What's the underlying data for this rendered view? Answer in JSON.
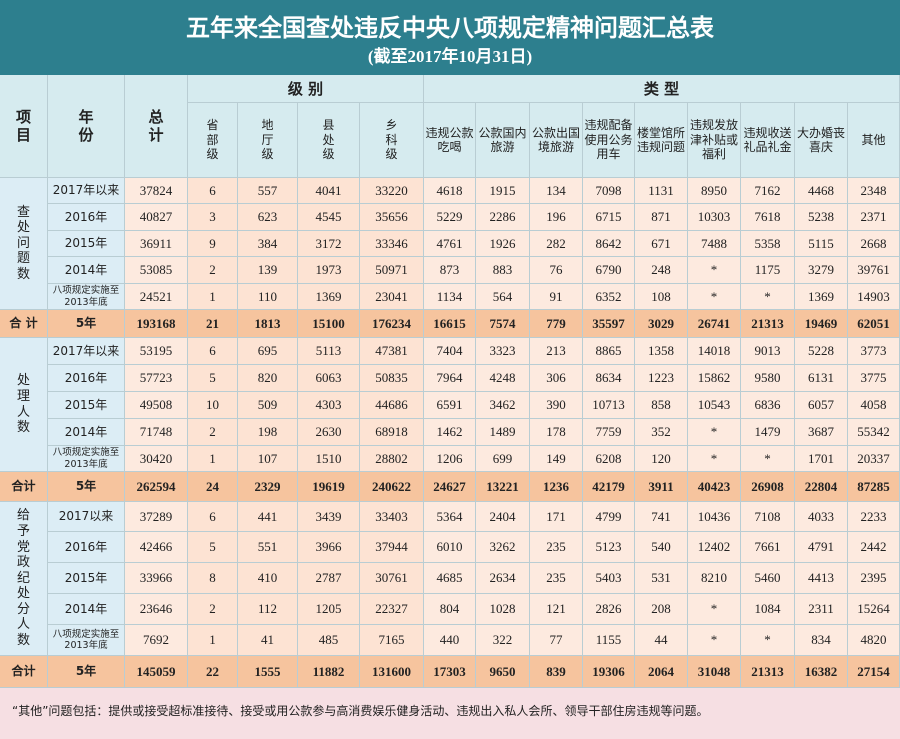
{
  "header": {
    "title": "五年来全国查处违反中央八项规定精神问题汇总表",
    "subtitle": "(截至2017年10月31日)"
  },
  "table": {
    "columns": {
      "item": "项目",
      "year": "年份",
      "total": "总计",
      "level": "级 别",
      "type": "类 型",
      "levels": [
        "省部级",
        "地厅级",
        "县处级",
        "乡科级"
      ],
      "types": [
        "违规公款吃喝",
        "公款国内旅游",
        "公款出国境旅游",
        "违规配备使用公务用车",
        "楼堂馆所违规问题",
        "违规发放津补贴或福利",
        "违规收送礼品礼金",
        "大办婚丧喜庆",
        "其他"
      ]
    },
    "sections": [
      {
        "label": "查处问题数",
        "rows": [
          {
            "year": "2017年以来",
            "values": [
              37824,
              6,
              557,
              4041,
              33220,
              4618,
              1915,
              134,
              7098,
              1131,
              8950,
              7162,
              4468,
              2348
            ]
          },
          {
            "year": "2016年",
            "values": [
              40827,
              3,
              623,
              4545,
              35656,
              5229,
              2286,
              196,
              6715,
              871,
              10303,
              7618,
              5238,
              2371
            ]
          },
          {
            "year": "2015年",
            "values": [
              36911,
              9,
              384,
              3172,
              33346,
              4761,
              1926,
              282,
              8642,
              671,
              7488,
              5358,
              5115,
              2668
            ]
          },
          {
            "year": "2014年",
            "values": [
              53085,
              2,
              139,
              1973,
              50971,
              873,
              883,
              76,
              6790,
              248,
              "*",
              1175,
              3279,
              39761
            ]
          },
          {
            "year": "八项规定实施至2013年底",
            "values": [
              24521,
              1,
              110,
              1369,
              23041,
              1134,
              564,
              91,
              6352,
              108,
              "*",
              "*",
              1369,
              14903
            ]
          }
        ],
        "total": {
          "label": "合 计",
          "year": "5年",
          "values": [
            193168,
            21,
            1813,
            15100,
            176234,
            16615,
            7574,
            779,
            35597,
            3029,
            26741,
            21313,
            19469,
            62051
          ]
        }
      },
      {
        "label": "处理人数",
        "rows": [
          {
            "year": "2017年以来",
            "values": [
              53195,
              6,
              695,
              5113,
              47381,
              7404,
              3323,
              213,
              8865,
              1358,
              14018,
              9013,
              5228,
              3773
            ]
          },
          {
            "year": "2016年",
            "values": [
              57723,
              5,
              820,
              6063,
              50835,
              7964,
              4248,
              306,
              8634,
              1223,
              15862,
              9580,
              6131,
              3775
            ]
          },
          {
            "year": "2015年",
            "values": [
              49508,
              10,
              509,
              4303,
              44686,
              6591,
              3462,
              390,
              10713,
              858,
              10543,
              6836,
              6057,
              4058
            ]
          },
          {
            "year": "2014年",
            "values": [
              71748,
              2,
              198,
              2630,
              68918,
              1462,
              1489,
              178,
              7759,
              352,
              "*",
              1479,
              3687,
              55342
            ]
          },
          {
            "year": "八项规定实施至2013年底",
            "values": [
              30420,
              1,
              107,
              1510,
              28802,
              1206,
              699,
              149,
              6208,
              120,
              "*",
              "*",
              1701,
              20337
            ]
          }
        ],
        "total": {
          "label": "合计",
          "year": "5年",
          "values": [
            262594,
            24,
            2329,
            19619,
            240622,
            24627,
            13221,
            1236,
            42179,
            3911,
            40423,
            26908,
            22804,
            87285
          ]
        }
      },
      {
        "label": "给予党政纪处分人数",
        "rows": [
          {
            "year": "2017以来",
            "values": [
              37289,
              6,
              441,
              3439,
              33403,
              5364,
              2404,
              171,
              4799,
              741,
              10436,
              7108,
              4033,
              2233
            ]
          },
          {
            "year": "2016年",
            "values": [
              42466,
              5,
              551,
              3966,
              37944,
              6010,
              3262,
              235,
              5123,
              540,
              12402,
              7661,
              4791,
              2442
            ]
          },
          {
            "year": "2015年",
            "values": [
              33966,
              8,
              410,
              2787,
              30761,
              4685,
              2634,
              235,
              5403,
              531,
              8210,
              5460,
              4413,
              2395
            ]
          },
          {
            "year": "2014年",
            "values": [
              23646,
              2,
              112,
              1205,
              22327,
              804,
              1028,
              121,
              2826,
              208,
              "*",
              1084,
              2311,
              15264
            ]
          },
          {
            "year": "八项规定实施至2013年底",
            "values": [
              7692,
              1,
              41,
              485,
              7165,
              440,
              322,
              77,
              1155,
              44,
              "*",
              "*",
              834,
              4820
            ]
          }
        ],
        "total": {
          "label": "合计",
          "year": "5年",
          "values": [
            145059,
            22,
            1555,
            11882,
            131600,
            17303,
            9650,
            839,
            19306,
            2064,
            31048,
            21313,
            16382,
            27154
          ]
        }
      }
    ]
  },
  "footnote": "“其他”问题包括：提供或接受超标准接待、接受或用公款参与高消费娱乐健身活动、违规出入私人会所、领导干部住房违规等问题。"
}
